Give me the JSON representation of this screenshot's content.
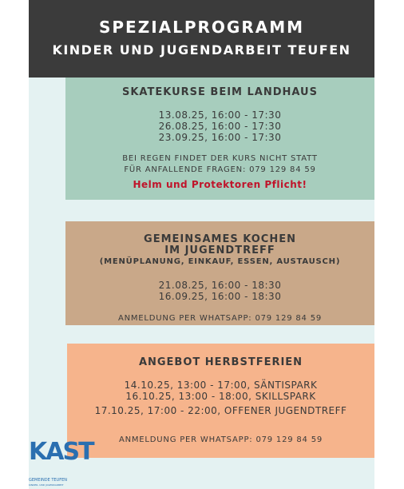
{
  "header": {
    "title": [
      "SPEZIALPROGRAMM",
      "KINDER UND JUGENDARBEIT TEUFEN"
    ]
  },
  "sections": [
    {
      "heading": [
        "SKATEKURSE BEIM LANDHAUS"
      ],
      "dates": [
        "13.08.25, 16:00 - 17:30",
        "26.08.25, 16:00 - 17:30",
        "23.09.25, 16:00 - 17:30"
      ],
      "notes": [
        "BEI REGEN FINDET DER KURS NICHT STATT",
        "FÜR ANFALLENDE FRAGEN: 079 129 84 59"
      ],
      "highlight": "Helm und Protektoren Pflicht!"
    },
    {
      "heading": [
        "GEMEINSAMES KOCHEN",
        "IM JUGENDTREFF"
      ],
      "subheading": "(MENÜPLANUNG, EINKAUF, ESSEN, AUSTAUSCH)",
      "dates": [
        "21.08.25, 16:00 - 18:30",
        "16.09.25, 16:00 - 18:30"
      ],
      "notes": [
        "ANMELDUNG PER WHATSAPP: 079 129 84 59"
      ]
    },
    {
      "heading": [
        "ANGEBOT HERBSTFERIEN"
      ],
      "dates": [
        "14.10.25, 13:00 - 17:00, SÄNTISPARK",
        "16.10.25, 13:00 - 18:00, SKILLSPARK",
        "17.10.25, 17:00 - 22:00, OFFENER JUGENDTREFF"
      ],
      "notes": [
        "ANMELDUNG PER WHATSAPP: 079 129 84 59"
      ]
    }
  ],
  "logo": {
    "name": "KAST",
    "line1": "GEMEINDE TEUFEN",
    "line2": "KINDER- UND JUGENDARBEIT"
  }
}
